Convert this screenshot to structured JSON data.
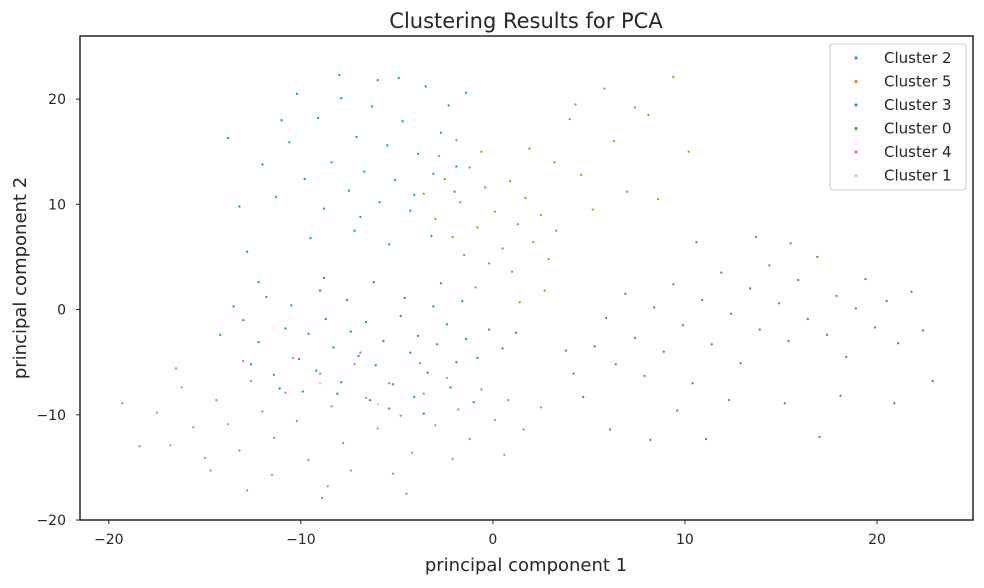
{
  "chart_data": {
    "type": "scatter",
    "title": "Clustering Results for PCA",
    "xlabel": "principal component 1",
    "ylabel": "principal component 2",
    "xlim": [
      -21.5,
      25.0
    ],
    "ylim": [
      -20.0,
      26.0
    ],
    "xticks": [
      -20,
      -10,
      0,
      10,
      20
    ],
    "yticks": [
      -20,
      -10,
      0,
      10,
      20
    ],
    "xtick_labels": [
      "−20",
      "−10",
      "0",
      "10",
      "20"
    ],
    "ytick_labels": [
      "−20",
      "−10",
      "0",
      "10",
      "20"
    ],
    "grid": false,
    "legend_position": "top-right",
    "series": [
      {
        "name": "Cluster 2",
        "color": "#1f9bd1",
        "values": [
          [
            -12.2,
            -3.1
          ],
          [
            -11.4,
            -6.2
          ],
          [
            -10.8,
            -1.8
          ],
          [
            -10.1,
            -4.7
          ],
          [
            -9.6,
            -2.3
          ],
          [
            -9.2,
            -5.8
          ],
          [
            -8.7,
            -0.9
          ],
          [
            -8.3,
            -3.6
          ],
          [
            -7.9,
            -6.9
          ],
          [
            -7.4,
            -2.1
          ],
          [
            -7.0,
            -4.4
          ],
          [
            -6.6,
            -1.2
          ],
          [
            -6.1,
            -5.3
          ],
          [
            -5.7,
            -3.0
          ],
          [
            -5.2,
            -7.1
          ],
          [
            -4.8,
            -0.6
          ],
          [
            -4.3,
            -4.1
          ],
          [
            -3.9,
            -2.5
          ],
          [
            -3.4,
            -6.0
          ],
          [
            -2.9,
            -3.3
          ],
          [
            -2.4,
            -1.4
          ],
          [
            -1.9,
            -5.0
          ],
          [
            -1.4,
            -2.8
          ],
          [
            -0.8,
            -4.6
          ],
          [
            -0.2,
            -1.9
          ],
          [
            0.5,
            -3.7
          ],
          [
            1.2,
            -2.2
          ],
          [
            -13.0,
            -1.0
          ],
          [
            -11.8,
            1.2
          ],
          [
            -10.5,
            0.4
          ],
          [
            -9.0,
            1.8
          ],
          [
            -7.6,
            0.9
          ],
          [
            -6.2,
            2.6
          ],
          [
            -4.6,
            1.1
          ],
          [
            -3.1,
            0.3
          ],
          [
            -1.6,
            0.8
          ],
          [
            -8.1,
            -8.0
          ],
          [
            -6.4,
            -8.6
          ],
          [
            -4.1,
            -8.3
          ],
          [
            -2.2,
            -7.4
          ],
          [
            -12.6,
            -5.2
          ],
          [
            -11.1,
            -7.5
          ],
          [
            -5.4,
            -9.4
          ],
          [
            -3.6,
            -9.9
          ],
          [
            -1.0,
            -8.8
          ],
          [
            -14.2,
            -2.4
          ],
          [
            -13.5,
            0.3
          ],
          [
            -9.9,
            -7.8
          ],
          [
            -8.8,
            3.0
          ],
          [
            -2.7,
            2.5
          ]
        ]
      },
      {
        "name": "Cluster 5",
        "color": "#e08a1e",
        "values": [
          [
            -3.6,
            11.0
          ],
          [
            -3.0,
            8.6
          ],
          [
            -2.5,
            12.4
          ],
          [
            -2.1,
            6.9
          ],
          [
            -1.7,
            10.2
          ],
          [
            -1.2,
            13.5
          ],
          [
            -0.8,
            7.8
          ],
          [
            -0.4,
            11.6
          ],
          [
            0.1,
            9.3
          ],
          [
            0.5,
            5.8
          ],
          [
            0.9,
            12.2
          ],
          [
            1.3,
            8.1
          ],
          [
            1.7,
            10.6
          ],
          [
            2.1,
            6.4
          ],
          [
            2.5,
            9.0
          ],
          [
            2.9,
            4.8
          ],
          [
            3.3,
            7.5
          ],
          [
            1.0,
            3.6
          ],
          [
            -0.2,
            4.4
          ],
          [
            -1.5,
            5.2
          ],
          [
            -2.8,
            14.6
          ],
          [
            -1.9,
            16.1
          ],
          [
            -0.6,
            15.0
          ],
          [
            1.9,
            15.3
          ],
          [
            3.2,
            14.0
          ],
          [
            4.3,
            19.5
          ],
          [
            4.0,
            18.1
          ],
          [
            5.2,
            9.5
          ],
          [
            6.3,
            16.0
          ],
          [
            7.4,
            19.2
          ],
          [
            8.1,
            18.5
          ],
          [
            9.4,
            22.1
          ],
          [
            7.0,
            11.2
          ],
          [
            8.6,
            10.5
          ],
          [
            10.2,
            15.0
          ],
          [
            2.7,
            1.8
          ],
          [
            1.4,
            0.7
          ],
          [
            -0.9,
            2.1
          ],
          [
            4.6,
            12.8
          ],
          [
            5.8,
            21.0
          ]
        ]
      },
      {
        "name": "Cluster 3",
        "color": "#17b0a0",
        "values": [
          [
            -9.1,
            18.2
          ],
          [
            -8.4,
            14.0
          ],
          [
            -7.9,
            20.1
          ],
          [
            -7.5,
            11.3
          ],
          [
            -7.1,
            16.4
          ],
          [
            -6.7,
            13.1
          ],
          [
            -6.3,
            19.3
          ],
          [
            -5.9,
            10.2
          ],
          [
            -5.5,
            15.6
          ],
          [
            -5.1,
            12.3
          ],
          [
            -4.7,
            17.9
          ],
          [
            -4.3,
            9.4
          ],
          [
            -3.9,
            14.8
          ],
          [
            -3.5,
            21.2
          ],
          [
            -3.1,
            12.9
          ],
          [
            -2.7,
            16.8
          ],
          [
            -2.3,
            19.4
          ],
          [
            -1.9,
            13.6
          ],
          [
            -8.8,
            9.6
          ],
          [
            -9.8,
            12.4
          ],
          [
            -10.6,
            15.9
          ],
          [
            -11.3,
            10.7
          ],
          [
            -12.0,
            13.8
          ],
          [
            -10.2,
            20.5
          ],
          [
            -8.0,
            22.3
          ],
          [
            -6.0,
            21.8
          ],
          [
            -4.9,
            22.0
          ],
          [
            -1.4,
            20.6
          ],
          [
            -13.2,
            9.8
          ],
          [
            -12.8,
            5.5
          ],
          [
            -9.5,
            6.8
          ],
          [
            -7.2,
            7.5
          ],
          [
            -5.4,
            6.2
          ],
          [
            -3.2,
            7.0
          ],
          [
            -11.0,
            18.0
          ],
          [
            -6.9,
            8.8
          ],
          [
            -4.1,
            10.9
          ],
          [
            -2.0,
            11.2
          ],
          [
            -13.8,
            16.3
          ],
          [
            -12.2,
            2.6
          ]
        ]
      },
      {
        "name": "Cluster 0",
        "color": "#3fb52b",
        "values": [
          [
            5.3,
            -3.5
          ],
          [
            5.9,
            -0.8
          ],
          [
            6.4,
            -5.2
          ],
          [
            6.9,
            1.5
          ],
          [
            7.4,
            -2.7
          ],
          [
            7.9,
            -6.3
          ],
          [
            8.4,
            0.2
          ],
          [
            8.9,
            -4.0
          ],
          [
            9.4,
            2.4
          ],
          [
            9.9,
            -1.5
          ],
          [
            10.4,
            -7.0
          ],
          [
            10.9,
            0.9
          ],
          [
            11.4,
            -3.3
          ],
          [
            11.9,
            3.5
          ],
          [
            12.4,
            -0.4
          ],
          [
            12.9,
            -5.1
          ],
          [
            13.4,
            2.0
          ],
          [
            13.9,
            -1.9
          ],
          [
            14.4,
            4.2
          ],
          [
            14.9,
            0.6
          ],
          [
            15.4,
            -3.0
          ],
          [
            15.9,
            2.8
          ],
          [
            16.4,
            -0.9
          ],
          [
            16.9,
            5.0
          ],
          [
            17.4,
            -2.4
          ],
          [
            17.9,
            1.3
          ],
          [
            18.4,
            -4.5
          ],
          [
            18.9,
            0.1
          ],
          [
            19.4,
            2.9
          ],
          [
            19.9,
            -1.7
          ],
          [
            20.5,
            0.8
          ],
          [
            21.1,
            -3.2
          ],
          [
            21.8,
            1.7
          ],
          [
            22.4,
            -2.0
          ],
          [
            22.9,
            -6.8
          ],
          [
            20.9,
            -8.9
          ],
          [
            18.1,
            -8.2
          ],
          [
            15.2,
            -8.9
          ],
          [
            12.3,
            -8.6
          ],
          [
            9.6,
            -9.6
          ],
          [
            8.2,
            -12.4
          ],
          [
            6.1,
            -11.4
          ],
          [
            4.7,
            -8.3
          ],
          [
            4.2,
            -6.1
          ],
          [
            3.8,
            -3.9
          ],
          [
            11.1,
            -12.3
          ],
          [
            17.0,
            -12.1
          ],
          [
            13.7,
            6.9
          ],
          [
            15.5,
            6.3
          ],
          [
            10.6,
            6.4
          ]
        ]
      },
      {
        "name": "Cluster 4",
        "color": "#e86de0",
        "values": [
          [
            -17.5,
            -9.8
          ],
          [
            -16.8,
            -12.9
          ],
          [
            -16.2,
            -7.4
          ],
          [
            -15.6,
            -11.2
          ],
          [
            -15.0,
            -14.1
          ],
          [
            -14.4,
            -8.6
          ],
          [
            -13.8,
            -10.9
          ],
          [
            -13.2,
            -13.4
          ],
          [
            -12.6,
            -6.8
          ],
          [
            -12.0,
            -9.7
          ],
          [
            -11.4,
            -12.2
          ],
          [
            -10.8,
            -7.9
          ],
          [
            -10.2,
            -10.6
          ],
          [
            -9.6,
            -14.3
          ],
          [
            -9.0,
            -6.1
          ],
          [
            -8.4,
            -9.2
          ],
          [
            -7.8,
            -12.7
          ],
          [
            -7.2,
            -5.2
          ],
          [
            -6.6,
            -8.4
          ],
          [
            -6.0,
            -11.3
          ],
          [
            -5.4,
            -7.0
          ],
          [
            -4.8,
            -10.1
          ],
          [
            -4.2,
            -13.6
          ],
          [
            -3.6,
            -8.0
          ],
          [
            -3.0,
            -11.0
          ],
          [
            -2.4,
            -6.5
          ],
          [
            -1.8,
            -9.5
          ],
          [
            -1.2,
            -12.3
          ],
          [
            -0.6,
            -7.6
          ],
          [
            0.1,
            -10.5
          ],
          [
            0.8,
            -8.6
          ],
          [
            1.6,
            -11.4
          ],
          [
            2.5,
            -9.3
          ],
          [
            -8.6,
            -16.8
          ],
          [
            -11.5,
            -15.7
          ],
          [
            -14.7,
            -15.3
          ],
          [
            -5.2,
            -15.6
          ],
          [
            -4.5,
            -17.5
          ],
          [
            -8.9,
            -17.9
          ],
          [
            -12.8,
            -17.2
          ],
          [
            -18.4,
            -13.0
          ],
          [
            -16.5,
            -5.6
          ],
          [
            -10.4,
            -4.6
          ],
          [
            -6.9,
            -4.1
          ],
          [
            -3.8,
            -5.1
          ],
          [
            -13.0,
            -4.9
          ],
          [
            -2.1,
            -14.2
          ],
          [
            0.6,
            -13.8
          ],
          [
            -19.3,
            -8.9
          ],
          [
            -7.4,
            -15.3
          ]
        ]
      },
      {
        "name": "Cluster 1",
        "color": "#f5b2dc",
        "values": [
          [
            -9.0,
            -7.0
          ],
          [
            -6.0,
            -9.0
          ]
        ]
      }
    ]
  }
}
